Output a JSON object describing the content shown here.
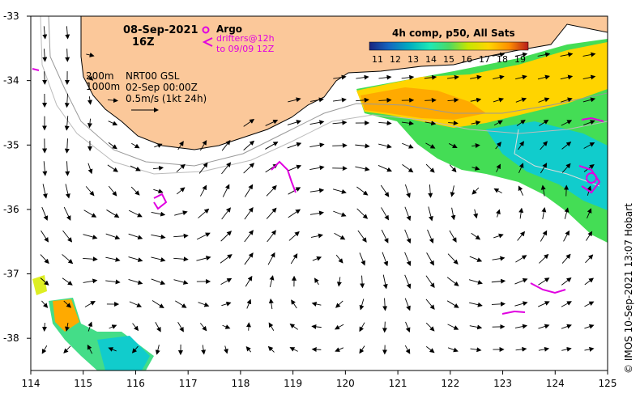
{
  "map": {
    "date": "08-Sep-2021",
    "hour": "16Z",
    "argo_label": "Argo",
    "drifters_label": "drifters@12h",
    "drifters_until": "to 09/09 12Z",
    "depth_200": "200m",
    "depth_1000": "1000m",
    "product": "NRT00 GSL",
    "product_date": "02-Sep 00:00Z",
    "scale_label": "0.5m/s (1kt 24h)",
    "sst_title": "4h comp, p50, All Sats",
    "colorbar_ticks": [
      "11",
      "12",
      "13",
      "14",
      "15",
      "16",
      "17",
      "18",
      "19"
    ],
    "credit": "©  IMOS 10-Sep-2021 13:07 Hobart",
    "x_ticks": [
      "114",
      "115",
      "116",
      "117",
      "118",
      "119",
      "120",
      "121",
      "122",
      "123",
      "124",
      "125"
    ],
    "y_ticks": [
      "-33",
      "-34",
      "-35",
      "-36",
      "-37",
      "-38"
    ],
    "lon_range": [
      114,
      125
    ],
    "lat_range": [
      -38.5,
      -33
    ],
    "colors": {
      "land": "#fbc89a",
      "argo_drifter": "#e000e0",
      "sst_19": "#ff9900",
      "sst_17": "#ffff00",
      "sst_15": "#33ee33",
      "sst_13": "#00cccc"
    }
  }
}
